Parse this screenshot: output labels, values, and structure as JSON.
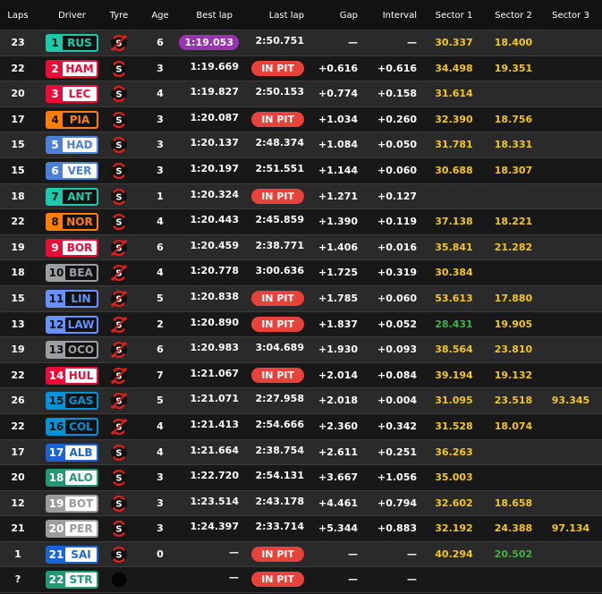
{
  "headers": {
    "laps": "Laps",
    "driver": "Driver",
    "tyre": "Tyre",
    "age": "Age",
    "best": "Best lap",
    "last": "Last lap",
    "gap": "Gap",
    "interval": "Interval",
    "s1": "Sector 1",
    "s2": "Sector 2",
    "s3": "Sector 3"
  },
  "colors": {
    "purple": "#9a33b2",
    "in_pit": "#e8433b",
    "sector_yellow": "#f2c521",
    "sector_green": "#43b047",
    "tyre_soft": "#e0201b"
  },
  "rows": [
    {
      "laps": "23",
      "pos": "1",
      "code": "RUS",
      "team_color": "#1cc9aa",
      "style": "dark",
      "tyre": "soft",
      "used": true,
      "age": "6",
      "best": "1:19.053",
      "best_purple": true,
      "last": "2:50.751",
      "gap": "—",
      "interval": "—",
      "s1": "30.337",
      "s2": "18.400",
      "s3": ""
    },
    {
      "laps": "22",
      "pos": "2",
      "code": "HAM",
      "team_color": "#ee0a36",
      "style": "light",
      "tyre": "soft",
      "used": false,
      "age": "3",
      "best": "1:19.669",
      "last": "IN PIT",
      "gap": "+0.616",
      "interval": "+0.616",
      "s1": "34.498",
      "s2": "19.351",
      "s3": ""
    },
    {
      "laps": "20",
      "pos": "3",
      "code": "LEC",
      "team_color": "#ee0a36",
      "style": "light",
      "tyre": "soft",
      "used": false,
      "age": "4",
      "best": "1:19.827",
      "last": "2:50.153",
      "gap": "+0.774",
      "interval": "+0.158",
      "s1": "31.614",
      "s2": "",
      "s3": ""
    },
    {
      "laps": "17",
      "pos": "4",
      "code": "PIA",
      "team_color": "#ff8000",
      "style": "dark",
      "tyre": "soft",
      "used": false,
      "age": "3",
      "best": "1:20.087",
      "last": "IN PIT",
      "gap": "+1.034",
      "interval": "+0.260",
      "s1": "32.390",
      "s2": "18.756",
      "s3": ""
    },
    {
      "laps": "15",
      "pos": "5",
      "code": "HAD",
      "team_color": "#4a80d8",
      "style": "light",
      "tyre": "soft",
      "used": false,
      "age": "3",
      "best": "1:20.137",
      "last": "2:48.374",
      "gap": "+1.084",
      "interval": "+0.050",
      "s1": "31.781",
      "s2": "18.331",
      "s3": ""
    },
    {
      "laps": "15",
      "pos": "6",
      "code": "VER",
      "team_color": "#4a80d8",
      "style": "light",
      "tyre": "soft",
      "used": false,
      "age": "3",
      "best": "1:20.197",
      "last": "2:51.551",
      "gap": "+1.144",
      "interval": "+0.060",
      "s1": "30.688",
      "s2": "18.307",
      "s3": ""
    },
    {
      "laps": "18",
      "pos": "7",
      "code": "ANT",
      "team_color": "#1cc9aa",
      "style": "dark",
      "tyre": "soft",
      "used": false,
      "age": "1",
      "best": "1:20.324",
      "last": "IN PIT",
      "gap": "+1.271",
      "interval": "+0.127",
      "s1": "",
      "s2": "",
      "s3": ""
    },
    {
      "laps": "22",
      "pos": "8",
      "code": "NOR",
      "team_color": "#ff8000",
      "style": "dark",
      "tyre": "soft",
      "used": false,
      "age": "4",
      "best": "1:20.443",
      "last": "2:45.859",
      "gap": "+1.390",
      "interval": "+0.119",
      "s1": "37.138",
      "s2": "18.221",
      "s3": ""
    },
    {
      "laps": "19",
      "pos": "9",
      "code": "BOR",
      "team_color": "#ee0a36",
      "style": "light",
      "tyre": "soft",
      "used": true,
      "age": "6",
      "best": "1:20.459",
      "last": "2:38.771",
      "gap": "+1.406",
      "interval": "+0.016",
      "s1": "35.841",
      "s2": "21.282",
      "s3": ""
    },
    {
      "laps": "18",
      "pos": "10",
      "code": "BEA",
      "team_color": "#9c9fa2",
      "style": "dark",
      "tyre": "soft",
      "used": true,
      "age": "4",
      "best": "1:20.778",
      "last": "3:00.636",
      "gap": "+1.725",
      "interval": "+0.319",
      "s1": "30.384",
      "s2": "",
      "s3": ""
    },
    {
      "laps": "15",
      "pos": "11",
      "code": "LIN",
      "team_color": "#6692ff",
      "style": "dark",
      "tyre": "soft",
      "used": true,
      "age": "5",
      "best": "1:20.838",
      "last": "IN PIT",
      "gap": "+1.785",
      "interval": "+0.060",
      "s1": "53.613",
      "s2": "17.880",
      "s3": ""
    },
    {
      "laps": "13",
      "pos": "12",
      "code": "LAW",
      "team_color": "#6692ff",
      "style": "dark",
      "tyre": "soft",
      "used": true,
      "age": "2",
      "best": "1:20.890",
      "last": "IN PIT",
      "gap": "+1.837",
      "interval": "+0.052",
      "s1": "28.431",
      "s1_green": true,
      "s2": "19.905",
      "s3": ""
    },
    {
      "laps": "19",
      "pos": "13",
      "code": "OCO",
      "team_color": "#9c9fa2",
      "style": "dark",
      "tyre": "soft",
      "used": true,
      "age": "6",
      "best": "1:20.983",
      "last": "3:04.689",
      "gap": "+1.930",
      "interval": "+0.093",
      "s1": "38.564",
      "s2": "23.810",
      "s3": ""
    },
    {
      "laps": "22",
      "pos": "14",
      "code": "HUL",
      "team_color": "#ee0a36",
      "style": "light",
      "tyre": "soft",
      "used": true,
      "age": "7",
      "best": "1:21.067",
      "last": "IN PIT",
      "gap": "+2.014",
      "interval": "+0.084",
      "s1": "39.194",
      "s2": "19.132",
      "s3": ""
    },
    {
      "laps": "26",
      "pos": "15",
      "code": "GAS",
      "team_color": "#0093d9",
      "style": "dark",
      "tyre": "soft",
      "used": true,
      "age": "5",
      "best": "1:21.071",
      "last": "2:27.958",
      "gap": "+2.018",
      "interval": "+0.004",
      "s1": "31.095",
      "s2": "23.518",
      "s3": "93.345"
    },
    {
      "laps": "22",
      "pos": "16",
      "code": "COL",
      "team_color": "#0093d9",
      "style": "dark",
      "tyre": "soft",
      "used": true,
      "age": "4",
      "best": "1:21.413",
      "last": "2:54.666",
      "gap": "+2.360",
      "interval": "+0.342",
      "s1": "31.528",
      "s2": "18.074",
      "s3": ""
    },
    {
      "laps": "17",
      "pos": "17",
      "code": "ALB",
      "team_color": "#1c64d6",
      "style": "light",
      "tyre": "soft",
      "used": false,
      "age": "4",
      "best": "1:21.664",
      "last": "2:38.754",
      "gap": "+2.611",
      "interval": "+0.251",
      "s1": "36.263",
      "s2": "",
      "s3": ""
    },
    {
      "laps": "20",
      "pos": "18",
      "code": "ALO",
      "team_color": "#229971",
      "style": "light",
      "tyre": "soft",
      "used": false,
      "age": "3",
      "best": "1:22.720",
      "last": "2:54.131",
      "gap": "+3.667",
      "interval": "+1.056",
      "s1": "35.003",
      "s2": "",
      "s3": ""
    },
    {
      "laps": "12",
      "pos": "19",
      "code": "BOT",
      "team_color": "#9c9c9c",
      "style": "light",
      "tyre": "soft",
      "used": false,
      "age": "3",
      "best": "1:23.514",
      "last": "2:43.178",
      "gap": "+4.461",
      "interval": "+0.794",
      "s1": "32.602",
      "s2": "18.658",
      "s3": ""
    },
    {
      "laps": "21",
      "pos": "20",
      "code": "PER",
      "team_color": "#9c9c9c",
      "style": "light",
      "tyre": "soft",
      "used": false,
      "age": "3",
      "best": "1:24.397",
      "last": "2:33.714",
      "gap": "+5.344",
      "interval": "+0.883",
      "s1": "32.192",
      "s2": "24.388",
      "s3": "97.134"
    },
    {
      "laps": "1",
      "pos": "21",
      "code": "SAI",
      "team_color": "#1c64d6",
      "style": "light",
      "tyre": "soft",
      "used": false,
      "age": "0",
      "best": "—",
      "last": "IN PIT",
      "gap": "—",
      "interval": "—",
      "s1": "40.294",
      "s2": "20.502",
      "s2_green": true,
      "s3": ""
    },
    {
      "laps": "?",
      "pos": "22",
      "code": "STR",
      "team_color": "#229971",
      "style": "light",
      "tyre": "unknown",
      "used": false,
      "age": "",
      "best": "—",
      "last": "IN PIT",
      "gap": "—",
      "interval": "—",
      "s1": "",
      "s2": "",
      "s3": ""
    }
  ]
}
